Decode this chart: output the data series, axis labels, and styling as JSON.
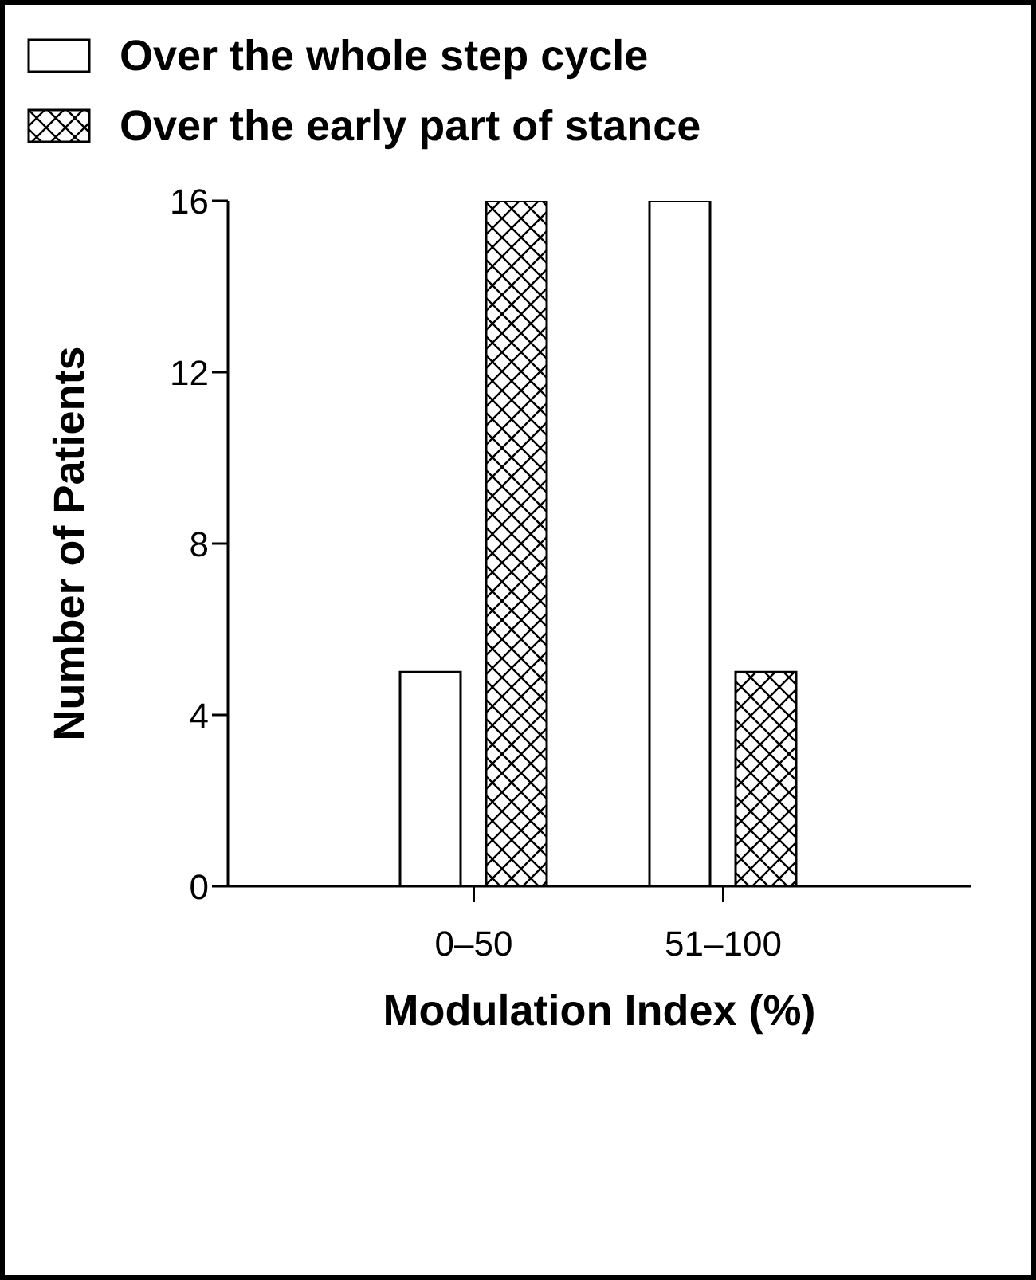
{
  "chart_data": {
    "type": "bar",
    "xlabel": "Modulation Index (%)",
    "ylabel": "Number of Patients",
    "categories": [
      "0–50",
      "51–100"
    ],
    "series": [
      {
        "name": "Over the whole step cycle",
        "color": "#ffffff",
        "values": [
          5,
          16
        ]
      },
      {
        "name": "Over the early part of stance",
        "color": "#000000",
        "values": [
          16,
          5
        ]
      }
    ],
    "ylim": [
      0,
      16
    ],
    "yticks": [
      0,
      4,
      8,
      12,
      16
    ],
    "grid": false,
    "legend": "top"
  }
}
